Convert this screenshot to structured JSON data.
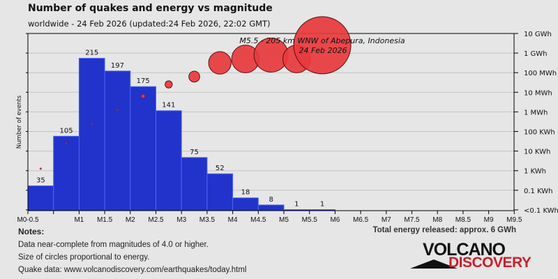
{
  "title": "Number of quakes and energy vs magnitude",
  "subtitle": "worldwide - 24 Feb 2026 (updated:24 Feb 2026, 22:02 GMT)",
  "chart_data": {
    "type": "bar",
    "ylabel": "Number of events",
    "ylim": [
      0,
      250
    ],
    "x_tick_labels": [
      "M0-0.5",
      "",
      "M1",
      "M1.5",
      "M2",
      "M2.5",
      "M3",
      "M3.5",
      "M4",
      "M4.5",
      "M5",
      "M5.5",
      "M6",
      "M6.5",
      "M7",
      "M7.5",
      "M8",
      "M8.5",
      "M9",
      "M9.5"
    ],
    "bins_start": [
      0,
      0.5,
      1,
      1.5,
      2,
      2.5,
      3,
      3.5,
      4,
      4.5,
      5,
      5.5
    ],
    "counts": [
      35,
      105,
      215,
      197,
      175,
      141,
      75,
      52,
      18,
      8,
      1,
      1
    ],
    "energy_axis": {
      "labels": [
        "10 GWh",
        "1 GWh",
        "100 MWh",
        "10 MWh",
        "1 MWh",
        "100 KWh",
        "10 KWh",
        "1 KWh",
        "0.1 KWh",
        "<0.1 KWh"
      ],
      "log10_wh_top": 10
    },
    "energy_log10_wh": [
      3.1,
      4.4,
      5.4,
      6.1,
      6.8,
      7.4,
      7.8,
      8.5,
      8.7,
      8.9,
      8.7,
      9.4
    ],
    "annotation": {
      "line1": "M5.5 - 205 km WNW of Abepura, Indonesia",
      "line2": "24 Feb 2026"
    },
    "colors": {
      "bar": "#2233cc",
      "bar_edge": "#4a66ee",
      "circle": "#e8393d",
      "circle_edge": "#5a1010",
      "grid": "#c4c4c4"
    }
  },
  "notes": {
    "heading": "Notes:",
    "lines": [
      "Data near-complete from magnitudes of 4.0 or higher.",
      "Size of circles proportional to energy.",
      "Quake data: www.volcanodiscovery.com/earthquakes/today.html"
    ]
  },
  "total_energy": "Total energy released: approx. 6 GWh",
  "logo": {
    "top": "VOLCANO",
    "bottom": "DISCOVERY"
  }
}
